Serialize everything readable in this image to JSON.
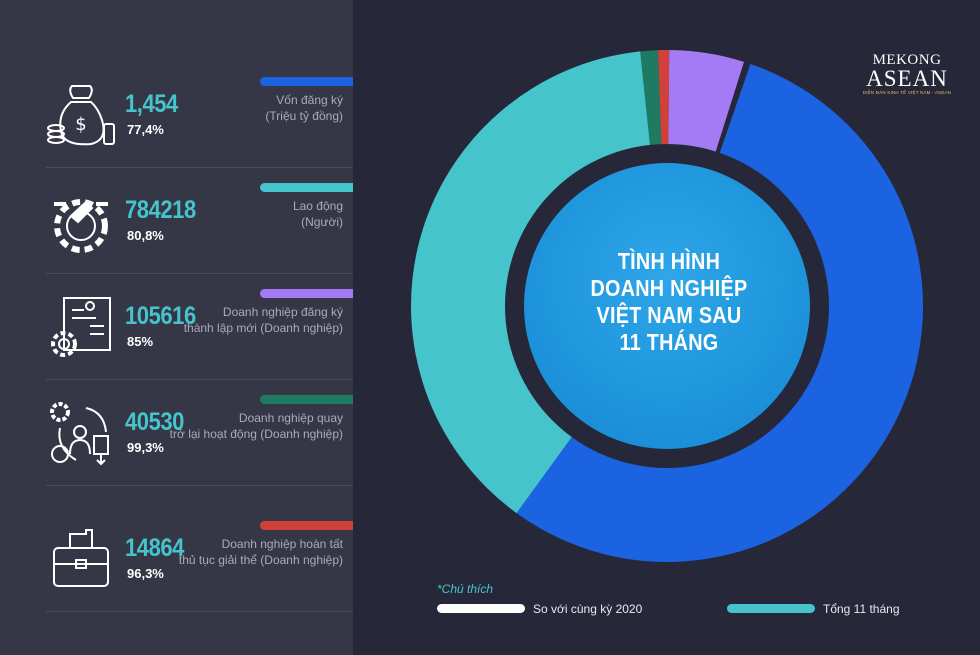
{
  "logo": {
    "line1": "MEKONG",
    "line2": "ASEAN",
    "tagline": "DIỄN ĐÀN KINH TẾ VIỆT NAM - ASEAN"
  },
  "title_lines": [
    "TÌNH HÌNH",
    "DOANH NGHIỆP",
    "VIỆT NAM SAU",
    "11 THÁNG"
  ],
  "stats": [
    {
      "value": "1,454",
      "percent": "77,4%",
      "label_lines": [
        "Vốn đăng ký",
        "(Triệu tỷ đồng)"
      ],
      "color": "#1b63e0",
      "icon": "money-bag-icon"
    },
    {
      "value": "784218",
      "percent": "80,8%",
      "label_lines": [
        "Lao động",
        "(Người)"
      ],
      "color": "#45c4cc",
      "icon": "worker-gear-icon"
    },
    {
      "value": "105616",
      "percent": "85%",
      "label_lines": [
        "Doanh nghiệp đăng ký",
        "thành lập mới (Doanh nghiệp)"
      ],
      "color": "#a57bf5",
      "icon": "gear-chart-icon"
    },
    {
      "value": "40530",
      "percent": "99,3%",
      "label_lines": [
        "Doanh nghiệp quay",
        "trở lại hoạt động (Doanh nghiệp)"
      ],
      "color": "#1f7a62",
      "icon": "person-cycle-icon"
    },
    {
      "value": "14864",
      "percent": "96,3%",
      "label_lines": [
        "Doanh nghiệp hoàn tất",
        "thủ tục giải thể (Doanh nghiệp)"
      ],
      "color": "#d2403a",
      "icon": "briefcase-icon"
    }
  ],
  "legend": {
    "title": "*Chú thích",
    "items": [
      {
        "label": "So với cùng kỳ 2020",
        "color": "#ffffff"
      },
      {
        "label": "Tổng 11 tháng",
        "color": "#45c4cc"
      }
    ]
  },
  "chart_data": {
    "type": "pie",
    "title": "TÌNH HÌNH DOANH NGHIỆP VIỆT NAM SAU 11 THÁNG",
    "slices": [
      {
        "name": "Vốn đăng ký",
        "value": 1454,
        "share_deg": 197,
        "color": "#1b63e0"
      },
      {
        "name": "Lao động",
        "value": 784218,
        "share_deg": 138,
        "color": "#45c4cc"
      },
      {
        "name": "Doanh nghiệp quay trở lại hoạt động",
        "value": 40530,
        "share_deg": 4,
        "color": "#1f7a62"
      },
      {
        "name": "Doanh nghiệp hoàn tất thủ tục giải thể",
        "value": 14864,
        "share_deg": 2.5,
        "color": "#d2403a"
      },
      {
        "name": "Doanh nghiệp đăng ký thành lập mới",
        "value": 105616,
        "share_deg": 17,
        "color": "#a57bf5"
      }
    ]
  }
}
